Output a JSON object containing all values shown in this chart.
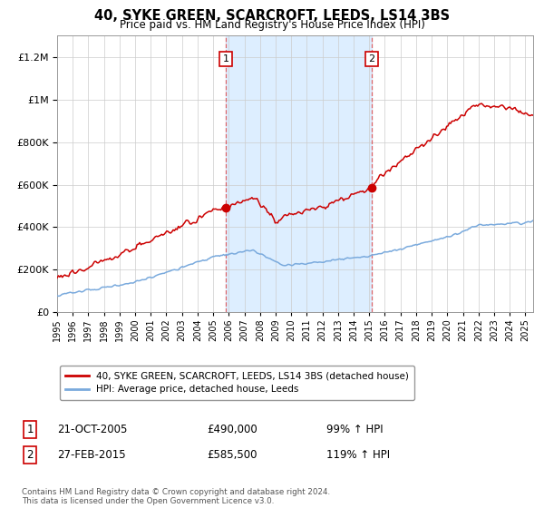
{
  "title": "40, SYKE GREEN, SCARCROFT, LEEDS, LS14 3BS",
  "subtitle": "Price paid vs. HM Land Registry's House Price Index (HPI)",
  "legend_line1": "40, SYKE GREEN, SCARCROFT, LEEDS, LS14 3BS (detached house)",
  "legend_line2": "HPI: Average price, detached house, Leeds",
  "sale1_label": "1",
  "sale1_date": "21-OCT-2005",
  "sale1_price": "£490,000",
  "sale1_hpi": "99% ↑ HPI",
  "sale1_year": 2005.8,
  "sale1_value": 490000,
  "sale2_label": "2",
  "sale2_date": "27-FEB-2015",
  "sale2_price": "£585,500",
  "sale2_hpi": "119% ↑ HPI",
  "sale2_year": 2015.15,
  "sale2_value": 585500,
  "red_color": "#cc0000",
  "blue_color": "#7aaadd",
  "shade_color": "#ddeeff",
  "vline_color": "#dd4444",
  "background_color": "#ffffff",
  "grid_color": "#cccccc",
  "ylim_max": 1300000,
  "ylim_min": 0,
  "xlim_min": 1995,
  "xlim_max": 2025.5,
  "footnote": "Contains HM Land Registry data © Crown copyright and database right 2024.\nThis data is licensed under the Open Government Licence v3.0."
}
